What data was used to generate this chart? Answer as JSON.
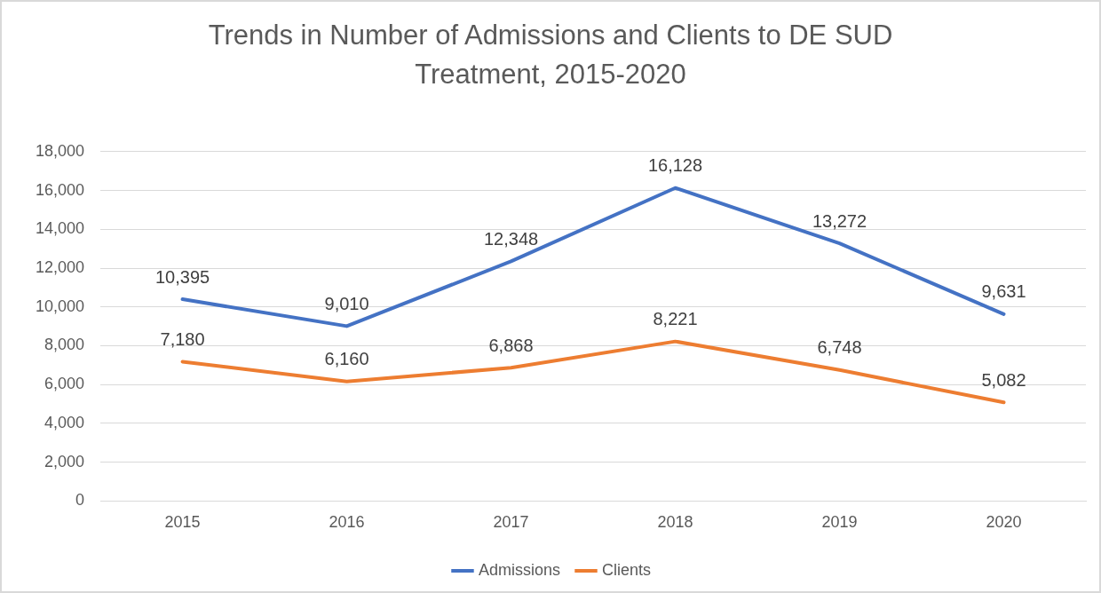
{
  "chart_data": {
    "type": "line",
    "title": "Trends in Number of Admissions and Clients to DE SUD Treatment, 2015-2020",
    "categories": [
      "2015",
      "2016",
      "2017",
      "2018",
      "2019",
      "2020"
    ],
    "series": [
      {
        "name": "Admissions",
        "color": "#4472c4",
        "values": [
          10395,
          9010,
          12348,
          16128,
          13272,
          9631
        ],
        "value_labels": [
          "10,395",
          "9,010",
          "12,348",
          "16,128",
          "13,272",
          "9,631"
        ]
      },
      {
        "name": "Clients",
        "color": "#ed7d31",
        "values": [
          7180,
          6160,
          6868,
          8221,
          6748,
          5082
        ],
        "value_labels": [
          "7,180",
          "6,160",
          "6,868",
          "8,221",
          "6,748",
          "5,082"
        ]
      }
    ],
    "ylim": [
      0,
      18000
    ],
    "yticks": [
      0,
      {
        "value": 2000,
        "label": "2,000"
      },
      {
        "value": 4000,
        "label": "4,000"
      },
      {
        "value": 6000,
        "label": "6,000"
      },
      {
        "value": 8000,
        "label": "8,000"
      },
      {
        "value": 10000,
        "label": "10,000"
      },
      {
        "value": 12000,
        "label": "12,000"
      },
      {
        "value": 14000,
        "label": "14,000"
      },
      {
        "value": 16000,
        "label": "16,000"
      },
      {
        "value": 18000,
        "label": "18,000"
      }
    ],
    "grid": "y",
    "legend": "bottom",
    "marker": "none",
    "line_style": "solid"
  }
}
